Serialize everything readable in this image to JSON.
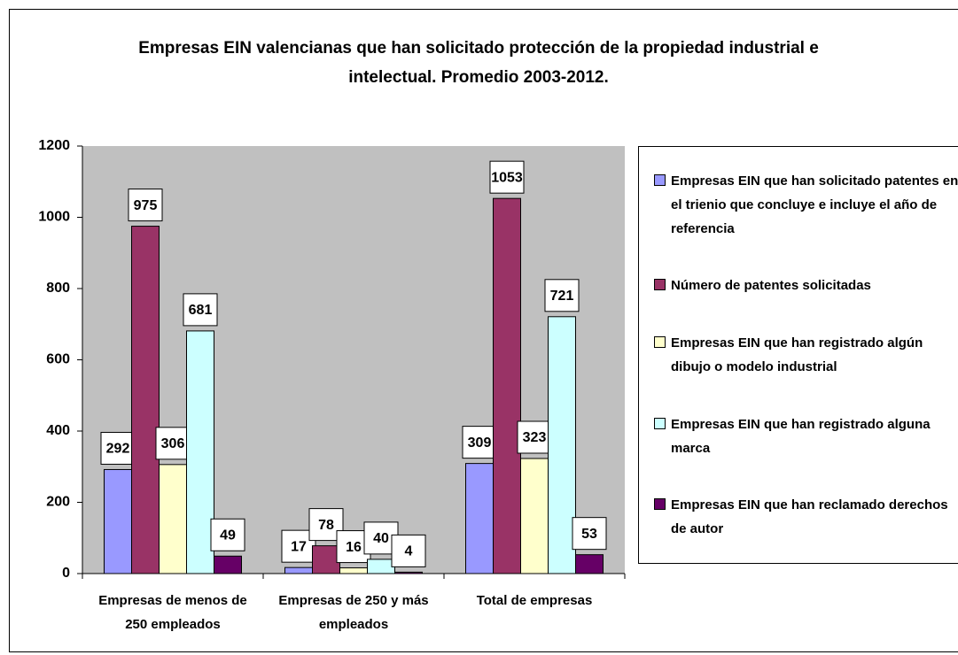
{
  "chart_data": {
    "type": "bar",
    "title": "Empresas EIN valencianas que han solicitado protección de la propiedad industrial e intelectual. Promedio 2003-2012.",
    "categories": [
      "Empresas de menos de 250 empleados",
      "Empresas de 250 y más empleados",
      "Total de empresas"
    ],
    "series": [
      {
        "name": "Empresas EIN que han solicitado patentes en el trienio que concluye e incluye el año de referencia",
        "color": "#9999ff",
        "values": [
          292,
          17,
          309
        ]
      },
      {
        "name": "Número de patentes solicitadas",
        "color": "#993366",
        "values": [
          975,
          78,
          1053
        ]
      },
      {
        "name": "Empresas EIN que han registrado algún dibujo o modelo industrial",
        "color": "#ffffcc",
        "values": [
          306,
          16,
          323
        ]
      },
      {
        "name": "Empresas EIN que han registrado alguna marca",
        "color": "#ccffff",
        "values": [
          681,
          40,
          721
        ]
      },
      {
        "name": "Empresas EIN que han reclamado derechos de autor",
        "color": "#660066",
        "values": [
          49,
          4,
          53
        ]
      }
    ],
    "ylim": [
      0,
      1200
    ],
    "yticks": [
      0,
      200,
      400,
      600,
      800,
      1000,
      1200
    ],
    "grid": false,
    "plot_background": "#c0c0c0",
    "legend": "right"
  }
}
